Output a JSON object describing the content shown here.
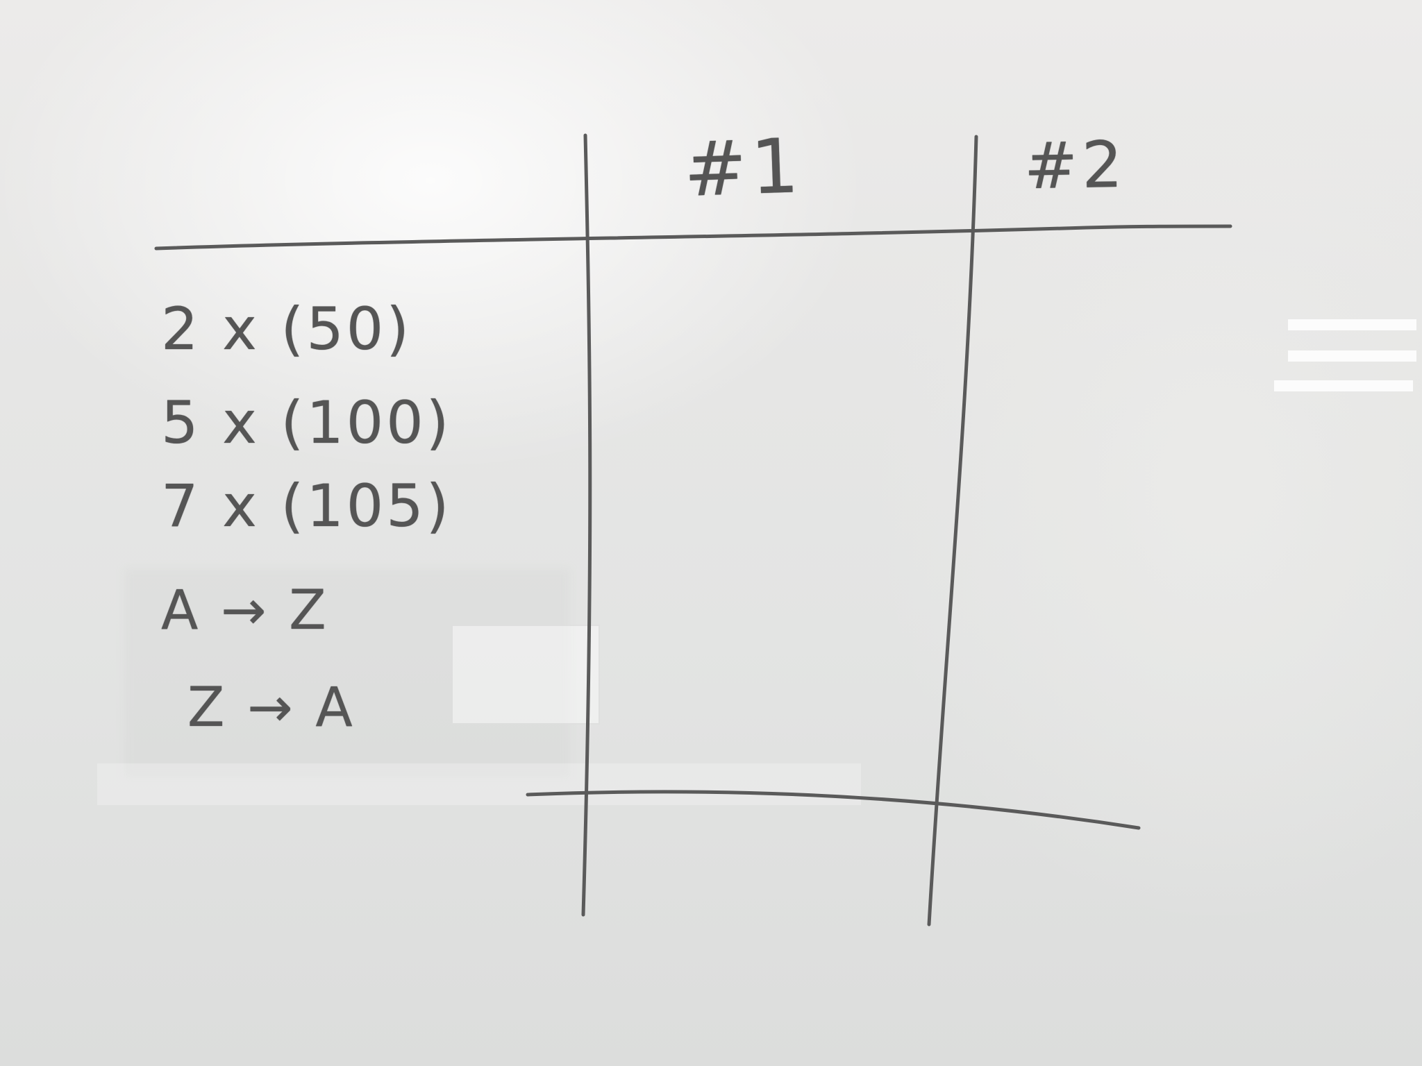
{
  "table": {
    "column_headers": [
      "#1",
      "#2"
    ],
    "row_labels": [
      "2 x (50)",
      "5 x (100)",
      "7 x (105)",
      "A → Z",
      "Z → A"
    ]
  },
  "colors": {
    "board": "#e6e6e5",
    "marker_ink": "#5a5a5a"
  }
}
